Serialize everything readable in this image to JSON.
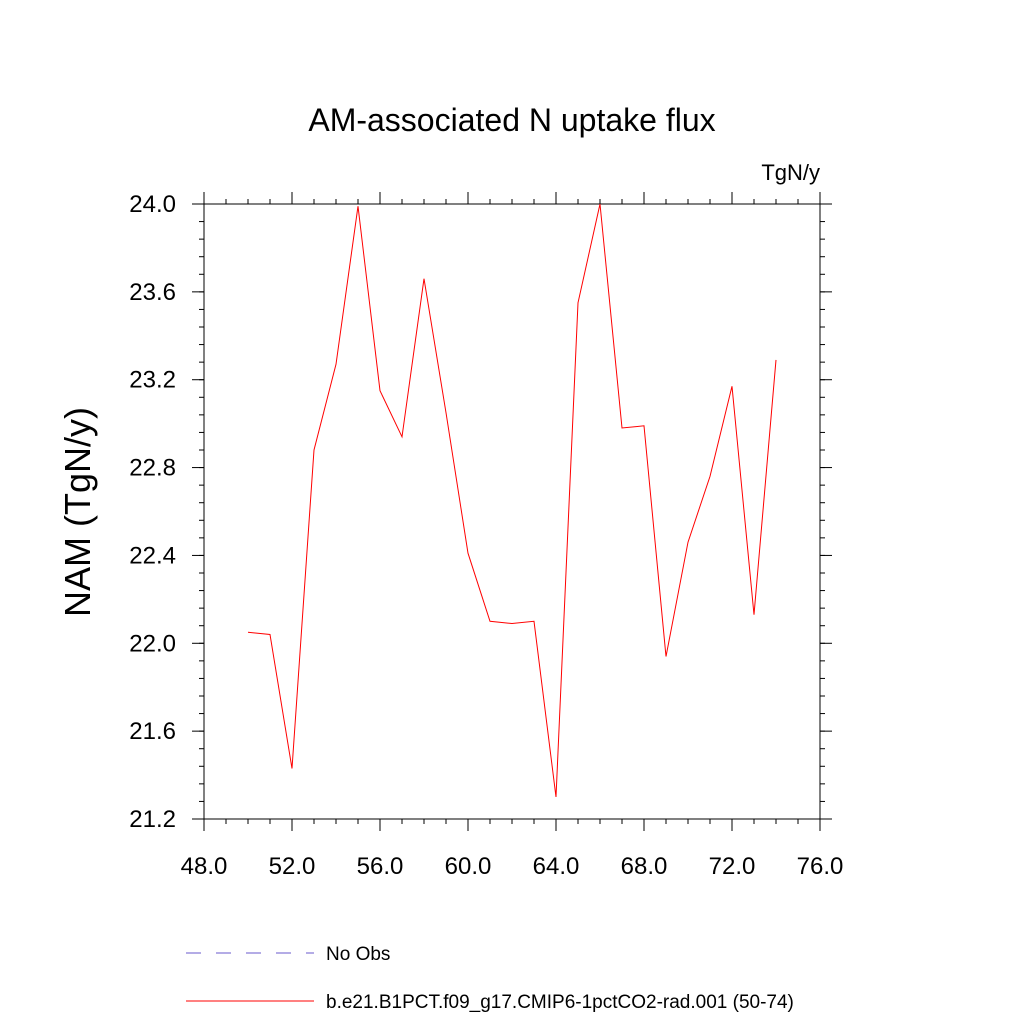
{
  "chart_data": {
    "type": "line",
    "title": "AM-associated N uptake flux",
    "units_label": "TgN/y",
    "xlabel": "",
    "ylabel": "NAM  (TgN/y)",
    "xlim": [
      48,
      76
    ],
    "ylim": [
      21.2,
      24.0
    ],
    "x_major_ticks": [
      48,
      52,
      56,
      60,
      64,
      68,
      72,
      76
    ],
    "x_tick_labels": [
      "48.0",
      "52.0",
      "56.0",
      "60.0",
      "64.0",
      "68.0",
      "72.0",
      "76.0"
    ],
    "x_minor_step": 1,
    "y_major_ticks": [
      21.2,
      21.6,
      22.0,
      22.4,
      22.8,
      23.2,
      23.6,
      24.0
    ],
    "y_tick_labels": [
      "21.2",
      "21.6",
      "22.0",
      "22.4",
      "22.8",
      "23.2",
      "23.6",
      "24.0"
    ],
    "y_minor_step": 0.08,
    "grid": false,
    "legend_position": "bottom",
    "series": [
      {
        "name": "b.e21.B1PCT.f09_g17.CMIP6-1pctCO2-rad.001 (50-74)",
        "color": "#ff0000",
        "style": "solid",
        "x": [
          50,
          51,
          52,
          53,
          54,
          55,
          56,
          57,
          58,
          59,
          60,
          61,
          62,
          63,
          64,
          65,
          66,
          67,
          68,
          69,
          70,
          71,
          72,
          73,
          74
        ],
        "y": [
          22.05,
          22.04,
          21.43,
          22.88,
          23.27,
          23.99,
          23.15,
          22.94,
          23.66,
          23.05,
          22.41,
          22.1,
          22.09,
          22.1,
          21.3,
          23.55,
          24.0,
          22.98,
          22.99,
          21.94,
          22.46,
          22.76,
          23.17,
          22.13,
          23.29
        ]
      }
    ],
    "legend": [
      {
        "label": "No Obs",
        "color": "#6a5acd",
        "style": "dashed"
      },
      {
        "label": "b.e21.B1PCT.f09_g17.CMIP6-1pctCO2-rad.001 (50-74)",
        "color": "#ff0000",
        "style": "solid"
      }
    ]
  }
}
